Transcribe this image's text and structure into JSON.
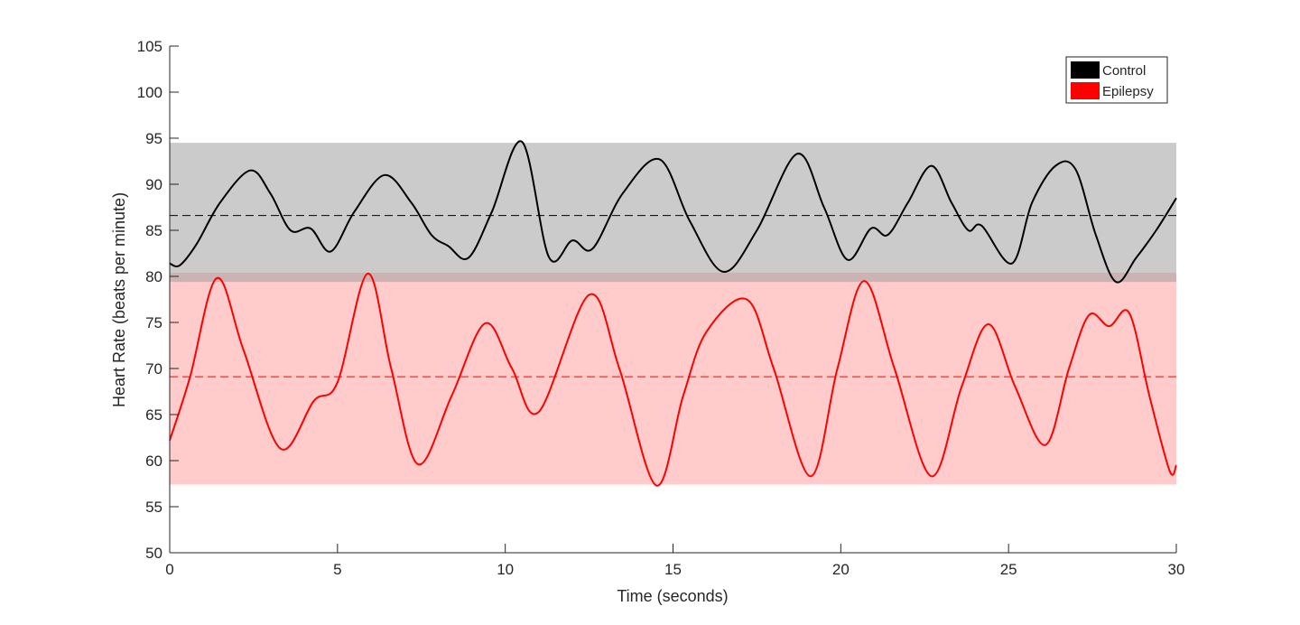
{
  "chart_data": {
    "type": "line",
    "title": "",
    "xlabel": "Time (seconds)",
    "ylabel": "Heart Rate (beats per minute)",
    "xlim": [
      0,
      30
    ],
    "ylim": [
      50,
      105
    ],
    "xticks": [
      0,
      5,
      10,
      15,
      20,
      25,
      30
    ],
    "yticks": [
      50,
      55,
      60,
      65,
      70,
      75,
      80,
      85,
      90,
      95,
      100,
      105
    ],
    "grid": false,
    "legend_position": "top-right",
    "series": [
      {
        "name": "Control",
        "color": "#000000",
        "band_color": "#cccccc",
        "band": [
          79.4,
          94.5
        ],
        "mean": 86.6,
        "points": [
          [
            0,
            81.4
          ],
          [
            0.3,
            81.2
          ],
          [
            0.8,
            83.5
          ],
          [
            1.5,
            88
          ],
          [
            2.4,
            91.5
          ],
          [
            3.0,
            89
          ],
          [
            3.6,
            85
          ],
          [
            4.2,
            85.2
          ],
          [
            4.8,
            82.7
          ],
          [
            5.5,
            87
          ],
          [
            6.4,
            91
          ],
          [
            7.2,
            88
          ],
          [
            7.8,
            84.5
          ],
          [
            8.3,
            83.3
          ],
          [
            8.9,
            82
          ],
          [
            9.6,
            87
          ],
          [
            10.5,
            94.6
          ],
          [
            11.3,
            82.1
          ],
          [
            12.0,
            83.9
          ],
          [
            12.6,
            83
          ],
          [
            13.5,
            89
          ],
          [
            14.6,
            92.7
          ],
          [
            15.5,
            86
          ],
          [
            16.5,
            80.5
          ],
          [
            17.5,
            85
          ],
          [
            18.7,
            93.3
          ],
          [
            19.5,
            87.5
          ],
          [
            20.2,
            81.8
          ],
          [
            20.9,
            85.2
          ],
          [
            21.4,
            84.5
          ],
          [
            22.0,
            88
          ],
          [
            22.7,
            92
          ],
          [
            23.3,
            88
          ],
          [
            23.8,
            85
          ],
          [
            24.2,
            85.5
          ],
          [
            25.1,
            81.4
          ],
          [
            25.7,
            88
          ],
          [
            26.4,
            92
          ],
          [
            27.0,
            91.6
          ],
          [
            27.6,
            84.5
          ],
          [
            28.2,
            79.4
          ],
          [
            28.8,
            82
          ],
          [
            29.4,
            85
          ],
          [
            30,
            88.5
          ]
        ]
      },
      {
        "name": "Epilepsy",
        "color": "#ff0000",
        "band_color": "#ffc8c8",
        "band": [
          57.4,
          80.4
        ],
        "mean": 69.1,
        "points": [
          [
            0,
            62.2
          ],
          [
            0.6,
            69
          ],
          [
            1.4,
            79.8
          ],
          [
            2.2,
            72
          ],
          [
            3.3,
            61.3
          ],
          [
            4.3,
            66.5
          ],
          [
            5.0,
            68.5
          ],
          [
            5.9,
            80.3
          ],
          [
            6.6,
            70
          ],
          [
            7.4,
            59.6
          ],
          [
            8.4,
            67
          ],
          [
            9.4,
            74.9
          ],
          [
            10.2,
            70
          ],
          [
            11.0,
            65.3
          ],
          [
            12.5,
            78
          ],
          [
            13.4,
            70
          ],
          [
            14.5,
            57.3
          ],
          [
            15.3,
            67
          ],
          [
            16.0,
            74
          ],
          [
            17.2,
            77.5
          ],
          [
            18.0,
            70
          ],
          [
            19.1,
            58.3
          ],
          [
            19.9,
            70
          ],
          [
            20.7,
            79.5
          ],
          [
            21.6,
            70
          ],
          [
            22.7,
            58.3
          ],
          [
            23.6,
            68
          ],
          [
            24.4,
            74.8
          ],
          [
            25.2,
            68
          ],
          [
            26.1,
            61.7
          ],
          [
            26.8,
            70
          ],
          [
            27.4,
            75.8
          ],
          [
            28.0,
            74.6
          ],
          [
            28.6,
            76
          ],
          [
            29.2,
            67
          ],
          [
            29.8,
            58.9
          ],
          [
            30,
            59.5
          ]
        ]
      }
    ]
  }
}
